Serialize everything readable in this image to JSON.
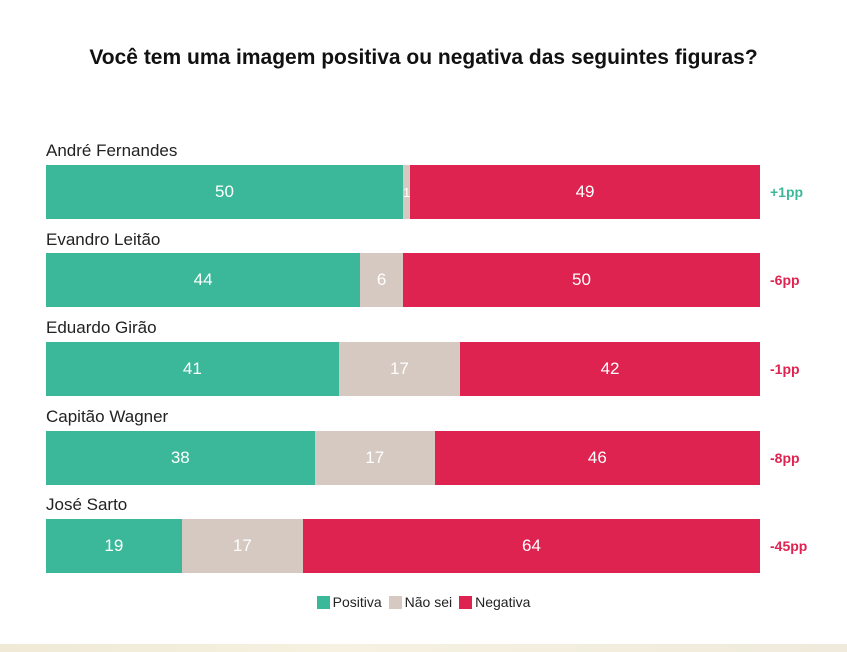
{
  "colors": {
    "positiva": "#3bb89a",
    "nao_sei": "#d6c9c1",
    "negativa": "#de2350",
    "diff_positive": "#3bb89a",
    "diff_negative": "#de2350"
  },
  "chart_data": {
    "type": "bar",
    "orientation": "horizontal",
    "stacked": true,
    "title": "Você tem uma imagem positiva ou negativa das seguintes figuras?",
    "categories": [
      "André Fernandes",
      "Evandro Leitão",
      "Eduardo Girão",
      "Capitão Wagner",
      "José Sarto"
    ],
    "series": [
      {
        "name": "Positiva",
        "color": "#3bb89a",
        "values": [
          50,
          44,
          41,
          38,
          19
        ]
      },
      {
        "name": "Não sei",
        "color": "#d6c9c1",
        "values": [
          1,
          6,
          17,
          17,
          17
        ]
      },
      {
        "name": "Negativa",
        "color": "#de2350",
        "values": [
          49,
          50,
          42,
          46,
          64
        ]
      }
    ],
    "differences": [
      "+1pp",
      "-6pp",
      "-1pp",
      "-8pp",
      "-45pp"
    ],
    "xlim": [
      0,
      100
    ],
    "legend_position": "bottom-center",
    "xlabel": "",
    "ylabel": ""
  }
}
